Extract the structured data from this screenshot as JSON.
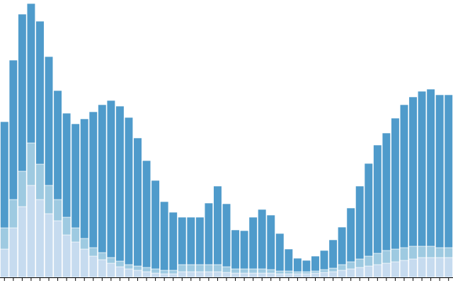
{
  "chart_data": {
    "type": "stacked_bar",
    "categories": [
      null,
      null,
      null,
      null,
      null,
      null,
      null,
      null,
      null,
      null,
      null,
      null,
      null,
      null,
      null,
      null,
      null,
      null,
      null,
      null,
      null,
      null,
      null,
      null,
      null,
      null,
      null,
      null,
      null,
      null,
      null,
      null,
      null,
      null,
      null,
      null,
      null,
      null,
      null,
      null,
      null,
      null,
      null,
      null,
      null,
      null,
      null,
      null,
      null,
      null,
      null
    ],
    "series": [
      {
        "color": "#c6dbef",
        "values": [
          40,
          70,
          100,
          130,
          110,
          90,
          80,
          60,
          50,
          40,
          30,
          25,
          20,
          15,
          12,
          10,
          8,
          6,
          5,
          5,
          8,
          8,
          8,
          8,
          8,
          7,
          6,
          6,
          6,
          6,
          6,
          5,
          5,
          5,
          5,
          6,
          7,
          8,
          10,
          12,
          14,
          16,
          18,
          20,
          22,
          24,
          26,
          28,
          28,
          28,
          28
        ]
      },
      {
        "color": "#9ecae1",
        "values": [
          30,
          40,
          50,
          60,
          50,
          40,
          30,
          25,
          20,
          15,
          12,
          10,
          8,
          8,
          6,
          6,
          6,
          6,
          5,
          5,
          10,
          10,
          10,
          10,
          10,
          8,
          6,
          6,
          6,
          6,
          5,
          4,
          4,
          3,
          3,
          3,
          4,
          5,
          8,
          10,
          12,
          14,
          16,
          18,
          18,
          18,
          18,
          16,
          16,
          14,
          14
        ]
      },
      {
        "color": "#4f9bcb",
        "values": [
          150,
          197,
          222,
          197,
          202,
          182,
          154,
          147,
          147,
          169,
          192,
          209,
          222,
          219,
          208,
          181,
          151,
          125,
          97,
          82,
          67,
          67,
          67,
          87,
          111,
          89,
          55,
          54,
          73,
          84,
          77,
          53,
          31,
          19,
          16,
          21,
          27,
          40,
          53,
          76,
          103,
          131,
          153,
          166,
          185,
          202,
          211,
          219,
          222,
          216,
          216
        ]
      }
    ],
    "ylim": [
      0,
      392
    ]
  }
}
